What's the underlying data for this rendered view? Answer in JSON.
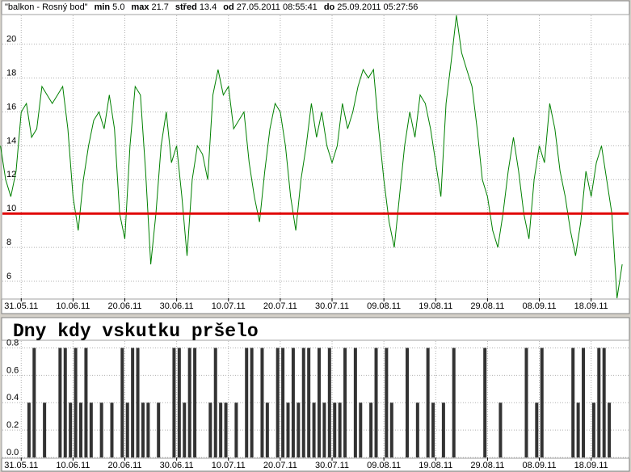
{
  "chart_data": [
    {
      "type": "line",
      "header": {
        "title": "\"balkon - Rosný bod\"",
        "stats": [
          {
            "label": "min",
            "text": "5.0"
          },
          {
            "label": "max",
            "text": "21.7"
          },
          {
            "label": "střed",
            "text": "13.4"
          },
          {
            "label": "od",
            "text": "27.05.2011 08:55:41"
          },
          {
            "label": "do",
            "text": "25.09.2011 05:27:56"
          }
        ]
      },
      "x": [
        "2011-05-27",
        "2011-05-28",
        "2011-05-29",
        "2011-05-30",
        "2011-05-31",
        "2011-06-01",
        "2011-06-02",
        "2011-06-03",
        "2011-06-04",
        "2011-06-05",
        "2011-06-06",
        "2011-06-07",
        "2011-06-08",
        "2011-06-09",
        "2011-06-10",
        "2011-06-11",
        "2011-06-12",
        "2011-06-13",
        "2011-06-14",
        "2011-06-15",
        "2011-06-16",
        "2011-06-17",
        "2011-06-18",
        "2011-06-19",
        "2011-06-20",
        "2011-06-21",
        "2011-06-22",
        "2011-06-23",
        "2011-06-24",
        "2011-06-25",
        "2011-06-26",
        "2011-06-27",
        "2011-06-28",
        "2011-06-29",
        "2011-06-30",
        "2011-07-01",
        "2011-07-02",
        "2011-07-03",
        "2011-07-04",
        "2011-07-05",
        "2011-07-06",
        "2011-07-07",
        "2011-07-08",
        "2011-07-09",
        "2011-07-10",
        "2011-07-11",
        "2011-07-12",
        "2011-07-13",
        "2011-07-14",
        "2011-07-15",
        "2011-07-16",
        "2011-07-17",
        "2011-07-18",
        "2011-07-19",
        "2011-07-20",
        "2011-07-21",
        "2011-07-22",
        "2011-07-23",
        "2011-07-24",
        "2011-07-25",
        "2011-07-26",
        "2011-07-27",
        "2011-07-28",
        "2011-07-29",
        "2011-07-30",
        "2011-07-31",
        "2011-08-01",
        "2011-08-02",
        "2011-08-03",
        "2011-08-04",
        "2011-08-05",
        "2011-08-06",
        "2011-08-07",
        "2011-08-08",
        "2011-08-09",
        "2011-08-10",
        "2011-08-11",
        "2011-08-12",
        "2011-08-13",
        "2011-08-14",
        "2011-08-15",
        "2011-08-16",
        "2011-08-17",
        "2011-08-18",
        "2011-08-19",
        "2011-08-20",
        "2011-08-21",
        "2011-08-22",
        "2011-08-23",
        "2011-08-24",
        "2011-08-25",
        "2011-08-26",
        "2011-08-27",
        "2011-08-28",
        "2011-08-29",
        "2011-08-30",
        "2011-08-31",
        "2011-09-01",
        "2011-09-02",
        "2011-09-03",
        "2011-09-04",
        "2011-09-05",
        "2011-09-06",
        "2011-09-07",
        "2011-09-08",
        "2011-09-09",
        "2011-09-10",
        "2011-09-11",
        "2011-09-12",
        "2011-09-13",
        "2011-09-14",
        "2011-09-15",
        "2011-09-16",
        "2011-09-17",
        "2011-09-18",
        "2011-09-19",
        "2011-09-20",
        "2011-09-21",
        "2011-09-22",
        "2011-09-23",
        "2011-09-24"
      ],
      "series": [
        {
          "color": "#008000",
          "values": [
            14,
            12,
            11,
            12.5,
            16,
            16.5,
            14.5,
            15,
            17.5,
            17,
            16.5,
            17,
            17.5,
            15,
            11,
            9,
            12,
            14,
            15.5,
            16,
            15,
            17,
            15,
            10,
            8.5,
            14,
            17.5,
            17,
            12.5,
            7,
            10,
            14,
            16,
            13,
            14,
            11,
            7.5,
            12,
            14,
            13.5,
            12,
            17,
            18.5,
            17,
            17.5,
            15,
            15.5,
            16,
            13,
            11,
            9.5,
            12.5,
            15,
            16.5,
            16,
            14,
            11,
            9,
            12,
            14,
            16.5,
            14.5,
            16,
            14,
            13,
            14,
            16.5,
            15,
            16,
            17.5,
            18.5,
            18,
            18.5,
            15,
            12,
            9.5,
            8,
            11,
            14,
            16,
            14.5,
            17,
            16.5,
            15,
            13,
            11,
            16.5,
            19,
            21.7,
            19.5,
            18.5,
            17.5,
            15,
            12,
            11,
            9,
            8,
            10,
            12.5,
            14.5,
            12.5,
            10,
            8.5,
            12,
            14,
            13,
            16.5,
            15,
            12.5,
            11,
            9,
            7.5,
            9.5,
            12.5,
            11,
            13,
            14,
            12,
            10,
            5,
            7
          ]
        }
      ],
      "reference_line": {
        "value": 10,
        "color": "#e00000"
      },
      "xlim": [
        "2011-05-27T08:55:41",
        "2011-09-25T05:27:56"
      ],
      "xticks": [
        {
          "value": "2011-05-31",
          "label": "31.05.11"
        },
        {
          "value": "2011-06-10",
          "label": "10.06.11"
        },
        {
          "value": "2011-06-20",
          "label": "20.06.11"
        },
        {
          "value": "2011-06-30",
          "label": "30.06.11"
        },
        {
          "value": "2011-07-10",
          "label": "10.07.11"
        },
        {
          "value": "2011-07-20",
          "label": "20.07.11"
        },
        {
          "value": "2011-07-30",
          "label": "30.07.11"
        },
        {
          "value": "2011-08-09",
          "label": "09.08.11"
        },
        {
          "value": "2011-08-19",
          "label": "19.08.11"
        },
        {
          "value": "2011-08-29",
          "label": "29.08.11"
        },
        {
          "value": "2011-09-08",
          "label": "08.09.11"
        },
        {
          "value": "2011-09-18",
          "label": "18.09.11"
        }
      ],
      "ylim": [
        5,
        21.7
      ],
      "yticks": [
        6,
        8,
        10,
        12,
        14,
        16,
        18,
        20
      ],
      "grid": true
    },
    {
      "type": "bar",
      "title": "Dny kdy vskutku pršelo",
      "x": [
        "2011-05-27",
        "2011-05-28",
        "2011-05-29",
        "2011-05-30",
        "2011-05-31",
        "2011-06-01",
        "2011-06-02",
        "2011-06-03",
        "2011-06-04",
        "2011-06-05",
        "2011-06-06",
        "2011-06-07",
        "2011-06-08",
        "2011-06-09",
        "2011-06-10",
        "2011-06-11",
        "2011-06-12",
        "2011-06-13",
        "2011-06-14",
        "2011-06-15",
        "2011-06-16",
        "2011-06-17",
        "2011-06-18",
        "2011-06-19",
        "2011-06-20",
        "2011-06-21",
        "2011-06-22",
        "2011-06-23",
        "2011-06-24",
        "2011-06-25",
        "2011-06-26",
        "2011-06-27",
        "2011-06-28",
        "2011-06-29",
        "2011-06-30",
        "2011-07-01",
        "2011-07-02",
        "2011-07-03",
        "2011-07-04",
        "2011-07-05",
        "2011-07-06",
        "2011-07-07",
        "2011-07-08",
        "2011-07-09",
        "2011-07-10",
        "2011-07-11",
        "2011-07-12",
        "2011-07-13",
        "2011-07-14",
        "2011-07-15",
        "2011-07-16",
        "2011-07-17",
        "2011-07-18",
        "2011-07-19",
        "2011-07-20",
        "2011-07-21",
        "2011-07-22",
        "2011-07-23",
        "2011-07-24",
        "2011-07-25",
        "2011-07-26",
        "2011-07-27",
        "2011-07-28",
        "2011-07-29",
        "2011-07-30",
        "2011-07-31",
        "2011-08-01",
        "2011-08-02",
        "2011-08-03",
        "2011-08-04",
        "2011-08-05",
        "2011-08-06",
        "2011-08-07",
        "2011-08-08",
        "2011-08-09",
        "2011-08-10",
        "2011-08-11",
        "2011-08-12",
        "2011-08-13",
        "2011-08-14",
        "2011-08-15",
        "2011-08-16",
        "2011-08-17",
        "2011-08-18",
        "2011-08-19",
        "2011-08-20",
        "2011-08-21",
        "2011-08-22",
        "2011-08-23",
        "2011-08-24",
        "2011-08-25",
        "2011-08-26",
        "2011-08-27",
        "2011-08-28",
        "2011-08-29",
        "2011-08-30",
        "2011-08-31",
        "2011-09-01",
        "2011-09-02",
        "2011-09-03",
        "2011-09-04",
        "2011-09-05",
        "2011-09-06",
        "2011-09-07",
        "2011-09-08",
        "2011-09-09",
        "2011-09-10",
        "2011-09-11",
        "2011-09-12",
        "2011-09-13",
        "2011-09-14",
        "2011-09-15",
        "2011-09-16",
        "2011-09-17",
        "2011-09-18",
        "2011-09-19",
        "2011-09-20",
        "2011-09-21",
        "2011-09-22",
        "2011-09-23",
        "2011-09-24"
      ],
      "series": [
        {
          "color": "#333333",
          "values": [
            0,
            0,
            0,
            0,
            0,
            0.4,
            0.8,
            0,
            0.4,
            0,
            0,
            0.8,
            0.8,
            0.4,
            0.8,
            0.4,
            0.8,
            0.4,
            0,
            0.4,
            0,
            0.4,
            0,
            0.8,
            0.4,
            0.8,
            0.8,
            0.4,
            0.4,
            0,
            0.4,
            0,
            0,
            0.8,
            0.8,
            0.4,
            0.8,
            0.8,
            0,
            0,
            0.4,
            0.8,
            0.4,
            0.4,
            0,
            0.4,
            0,
            0.8,
            0.8,
            0,
            0.8,
            0.4,
            0,
            0.8,
            0.8,
            0.4,
            0.8,
            0.4,
            0.8,
            0.8,
            0.4,
            0.8,
            0.4,
            0.8,
            0.4,
            0.4,
            0.8,
            0,
            0.8,
            0.4,
            0,
            0.4,
            0.8,
            0,
            0.8,
            0.4,
            0,
            0,
            0.8,
            0,
            0.4,
            0,
            0.8,
            0.4,
            0,
            0.4,
            0,
            0.8,
            0,
            0,
            0,
            0,
            0,
            0.8,
            0,
            0,
            0.4,
            0,
            0,
            0,
            0,
            0.8,
            0,
            0.4,
            0.8,
            0,
            0,
            0,
            0,
            0,
            0.8,
            0.4,
            0.8,
            0,
            0.4,
            0.8,
            0.8,
            0.4,
            0,
            0,
            0
          ]
        }
      ],
      "xlim": [
        "2011-05-27T08:55:41",
        "2011-09-25T05:27:56"
      ],
      "xticks": [
        {
          "value": "2011-05-31",
          "label": "31.05.11"
        },
        {
          "value": "2011-06-10",
          "label": "10.06.11"
        },
        {
          "value": "2011-06-20",
          "label": "20.06.11"
        },
        {
          "value": "2011-06-30",
          "label": "30.06.11"
        },
        {
          "value": "2011-07-10",
          "label": "10.07.11"
        },
        {
          "value": "2011-07-20",
          "label": "20.07.11"
        },
        {
          "value": "2011-07-30",
          "label": "30.07.11"
        },
        {
          "value": "2011-08-09",
          "label": "09.08.11"
        },
        {
          "value": "2011-08-19",
          "label": "19.08.11"
        },
        {
          "value": "2011-08-29",
          "label": "29.08.11"
        },
        {
          "value": "2011-09-08",
          "label": "08.09.11"
        },
        {
          "value": "2011-09-18",
          "label": "18.09.11"
        }
      ],
      "ylim": [
        0,
        0.85
      ],
      "yticks": [
        {
          "value": 0,
          "label": "0.0"
        },
        {
          "value": 0.2,
          "label": "0.2"
        },
        {
          "value": 0.4,
          "label": "0.4"
        },
        {
          "value": 0.6,
          "label": "0.6"
        },
        {
          "value": 0.8,
          "label": "0.8"
        }
      ],
      "grid": true
    }
  ]
}
